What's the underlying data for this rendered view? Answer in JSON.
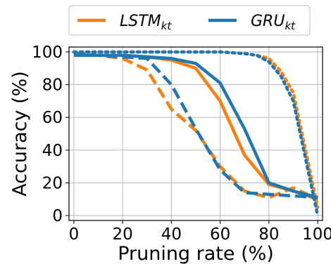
{
  "chart_data": {
    "type": "line",
    "xlabel": "Pruning rate (%)",
    "ylabel": "Accuracy (%)",
    "xlim": [
      -2,
      102
    ],
    "ylim": [
      -3,
      103
    ],
    "xticks": [
      0,
      20,
      40,
      60,
      80,
      100
    ],
    "yticks": [
      0,
      20,
      40,
      60,
      80,
      100
    ],
    "grid": true,
    "legend_position": "top-center, outside plot",
    "legend": [
      {
        "base": "LSTM",
        "sub": "kt",
        "color": "#ff7f0e"
      },
      {
        "base": "GRU",
        "sub": "kt",
        "color": "#1f77b4"
      }
    ],
    "series": [
      {
        "model": "LSTM",
        "style": "solid",
        "color": "#ff7f0e",
        "x": [
          0,
          10,
          20,
          30,
          40,
          50,
          60,
          70,
          80,
          90,
          100
        ],
        "y": [
          98,
          98,
          98,
          97,
          95,
          90,
          70,
          37,
          19,
          15,
          10
        ]
      },
      {
        "model": "LSTM",
        "style": "dashed",
        "color": "#ff7f0e",
        "x": [
          0,
          10,
          20,
          30,
          40,
          50,
          60,
          70,
          80,
          90,
          100
        ],
        "y": [
          98,
          98,
          96,
          89,
          65,
          52,
          30,
          15,
          11,
          17,
          10
        ]
      },
      {
        "model": "LSTM",
        "style": "dotted",
        "color": "#ff7f0e",
        "x": [
          0,
          10,
          20,
          30,
          40,
          50,
          60,
          70,
          75,
          80,
          85,
          90,
          95,
          100
        ],
        "y": [
          100,
          100,
          100,
          100,
          100,
          100,
          100,
          99,
          98,
          96,
          88,
          75,
          40,
          5
        ]
      },
      {
        "model": "GRU",
        "style": "solid",
        "color": "#1f77b4",
        "x": [
          0,
          10,
          20,
          30,
          40,
          50,
          60,
          70,
          80,
          90,
          100
        ],
        "y": [
          98,
          98,
          98,
          97,
          96,
          93,
          81,
          53,
          20,
          15,
          11
        ]
      },
      {
        "model": "GRU",
        "style": "dashed",
        "color": "#1f77b4",
        "x": [
          0,
          10,
          20,
          30,
          40,
          50,
          60,
          70,
          80,
          90,
          100
        ],
        "y": [
          99,
          98,
          97,
          96,
          80,
          53,
          28,
          14,
          13,
          12,
          11
        ]
      },
      {
        "model": "GRU",
        "style": "dotted",
        "color": "#1f77b4",
        "x": [
          0,
          10,
          20,
          30,
          40,
          50,
          60,
          70,
          75,
          80,
          85,
          90,
          95,
          100
        ],
        "y": [
          100,
          100,
          100,
          100,
          100,
          100,
          100,
          99,
          98,
          94,
          85,
          70,
          35,
          0
        ]
      }
    ]
  }
}
